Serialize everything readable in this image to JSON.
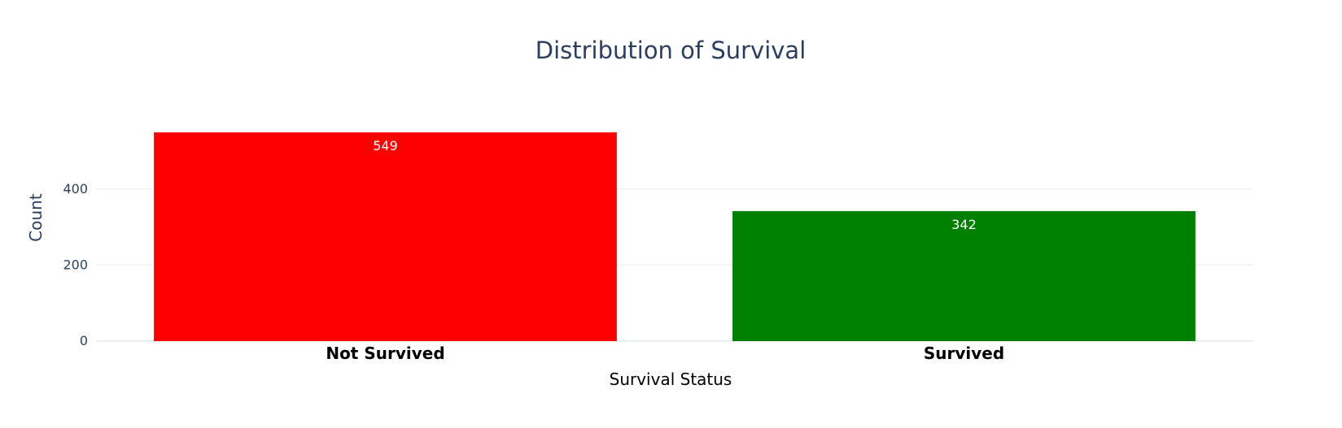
{
  "chart_data": {
    "type": "bar",
    "title": "Distribution of Survival",
    "xlabel": "Survival Status",
    "ylabel": "Count",
    "categories": [
      "Not Survived",
      "Survived"
    ],
    "values": [
      549,
      342
    ],
    "data_labels": [
      "549",
      "342"
    ],
    "colors": [
      "#ff0000",
      "#008000"
    ],
    "yticks": [
      0,
      200,
      400
    ],
    "ytick_labels": [
      "0",
      "200",
      "400"
    ],
    "ylim": [
      0,
      549
    ],
    "grid": true,
    "legend": "none",
    "background": "#ffffff",
    "grid_color": "#e9eef5",
    "text_color": "#2a3f5f"
  }
}
